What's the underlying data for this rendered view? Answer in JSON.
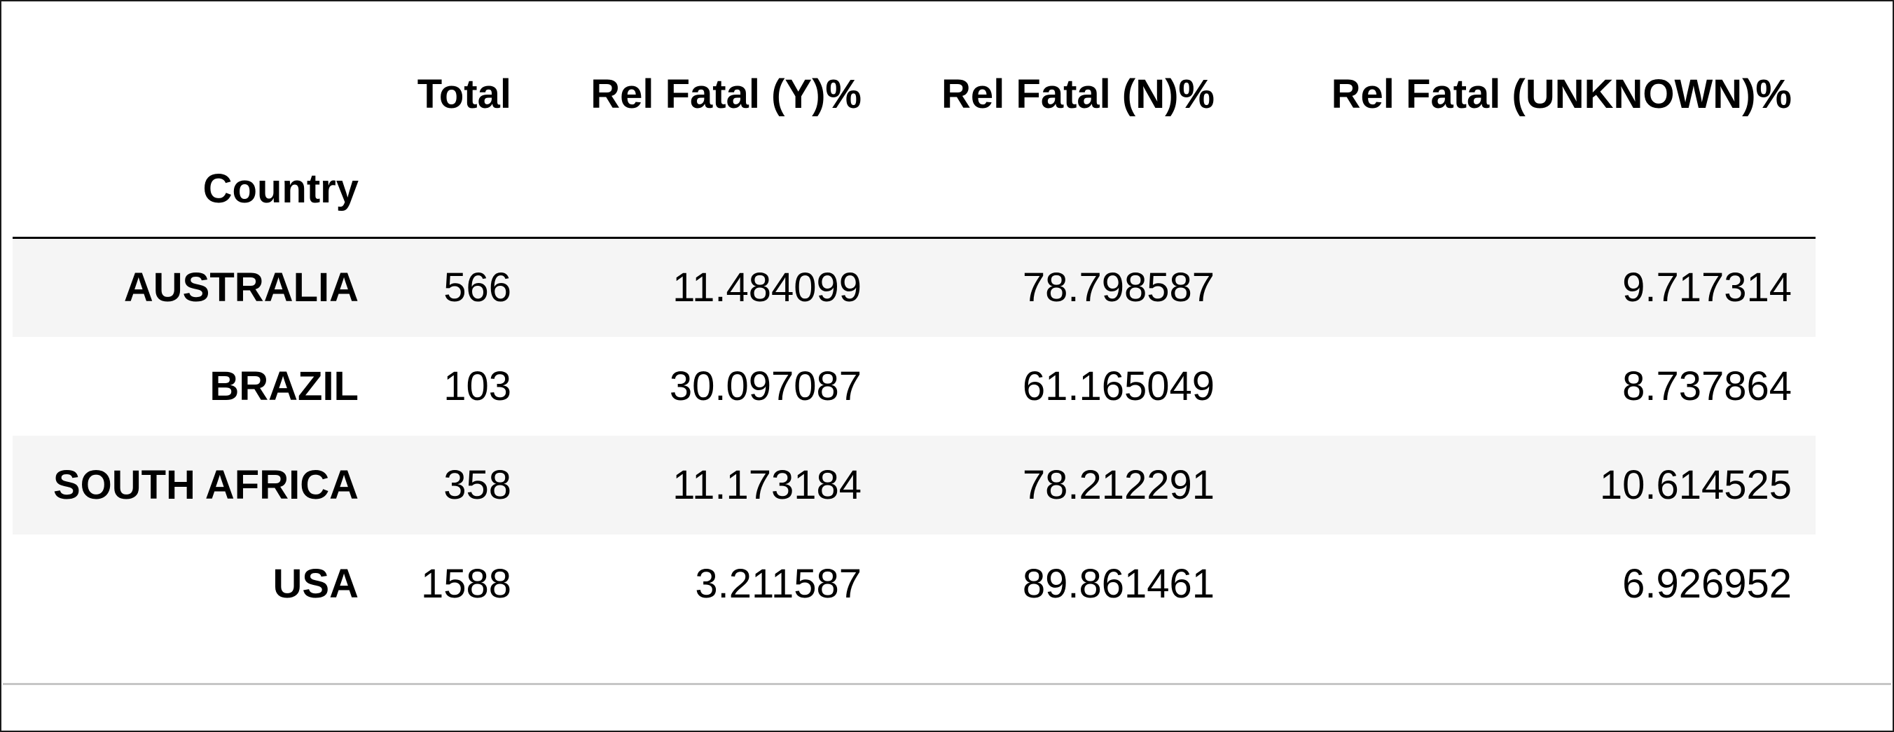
{
  "table": {
    "columns": [
      "Total",
      "Rel Fatal (Y)%",
      "Rel Fatal (N)%",
      "Rel Fatal (UNKNOWN)%"
    ],
    "index_name": "Country",
    "rows": [
      {
        "country": "AUSTRALIA",
        "values": [
          "566",
          "11.484099",
          "78.798587",
          "9.717314"
        ]
      },
      {
        "country": "BRAZIL",
        "values": [
          "103",
          "30.097087",
          "61.165049",
          "8.737864"
        ]
      },
      {
        "country": "SOUTH AFRICA",
        "values": [
          "358",
          "11.173184",
          "78.212291",
          "10.614525"
        ]
      },
      {
        "country": "USA",
        "values": [
          "1588",
          "3.211587",
          "89.861461",
          "6.926952"
        ]
      }
    ]
  },
  "colors": {
    "striped_row": "#f5f5f5",
    "header_rule": "#000000",
    "frame_border": "#1a1a1a"
  }
}
